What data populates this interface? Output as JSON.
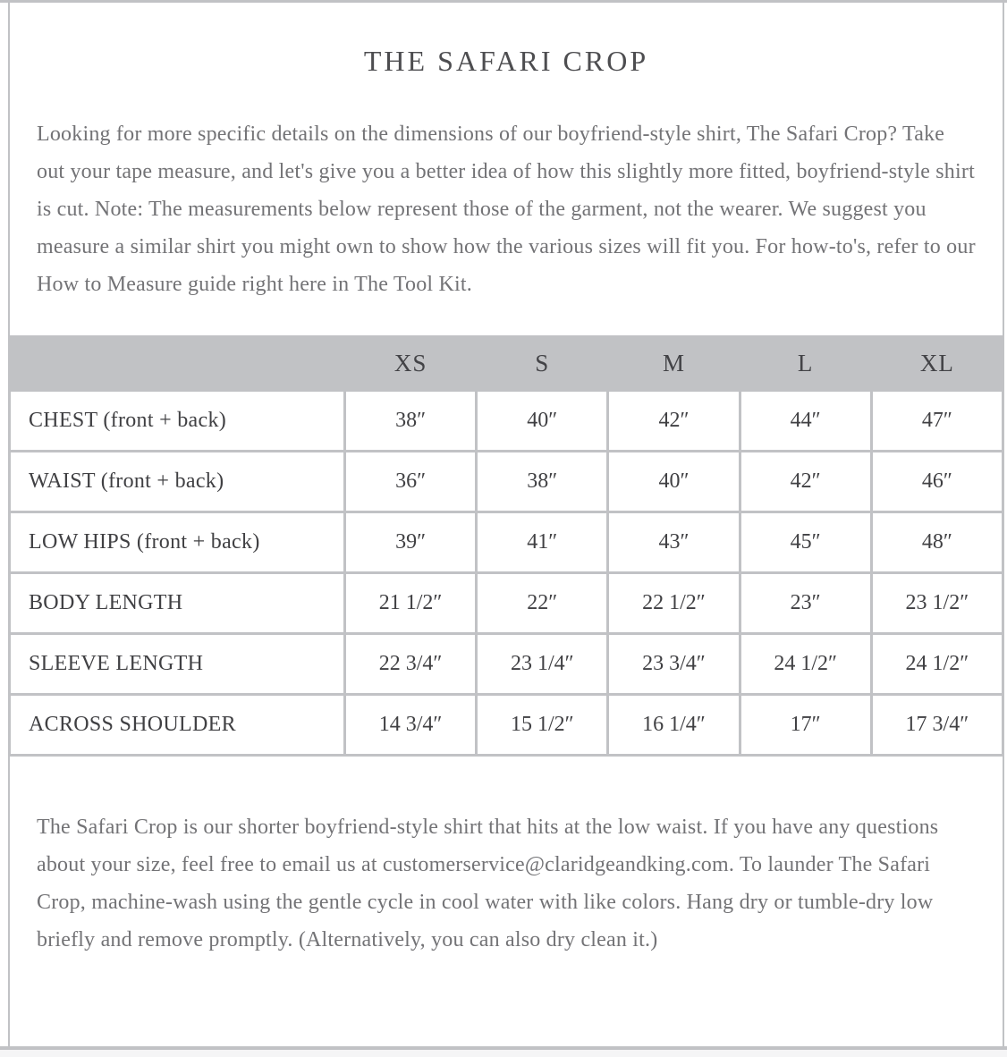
{
  "page": {
    "title": "THE SAFARI CROP",
    "intro": "Looking for more specific details on the dimensions of our boyfriend-style shirt, The Safari Crop? Take out your tape measure, and let's give you a better idea of how this slightly more fitted, boyfriend-style shirt is cut. Note: The measurements below represent those of the garment, not the wearer. We suggest you measure a similar shirt you might own to show how the various sizes will fit you. For how-to's, refer to our How to Measure guide right here in The Tool Kit.",
    "care": "The Safari Crop is our shorter boyfriend-style shirt that hits at the low waist. If you have any questions about your size, feel free to email us at customerservice@claridgeandking.com. To launder The Safari Crop, machine-wash using the gentle cycle in cool water with like colors. Hang dry or tumble-dry low briefly and remove promptly. (Alternatively, you can also dry clean it.)"
  },
  "size_chart": {
    "columns": [
      "XS",
      "S",
      "M",
      "L",
      "XL"
    ],
    "rows": [
      {
        "label": "CHEST (front + back)",
        "values": [
          "38″",
          "40″",
          "42″",
          "44″",
          "47″"
        ]
      },
      {
        "label": "WAIST (front + back)",
        "values": [
          "36″",
          "38″",
          "40″",
          "42″",
          "46″"
        ]
      },
      {
        "label": "LOW HIPS (front + back)",
        "values": [
          "39″",
          "41″",
          "43″",
          "45″",
          "48″"
        ]
      },
      {
        "label": "BODY LENGTH",
        "values": [
          "21 1/2″",
          "22″",
          "22 1/2″",
          "23″",
          "23 1/2″"
        ]
      },
      {
        "label": "SLEEVE LENGTH",
        "values": [
          "22 3/4″",
          "23 1/4″",
          "23 3/4″",
          "24 1/2″",
          "24 1/2″"
        ]
      },
      {
        "label": "ACROSS SHOULDER",
        "values": [
          "14 3/4″",
          "15 1/2″",
          "16 1/4″",
          "17″",
          "17 3/4″"
        ]
      }
    ]
  },
  "colors": {
    "header_gray": "#c1c2c5",
    "border_gray": "#c1c2c5",
    "text_dark": "#404043",
    "text_muted": "#737376",
    "title_color": "#4d4d50"
  }
}
